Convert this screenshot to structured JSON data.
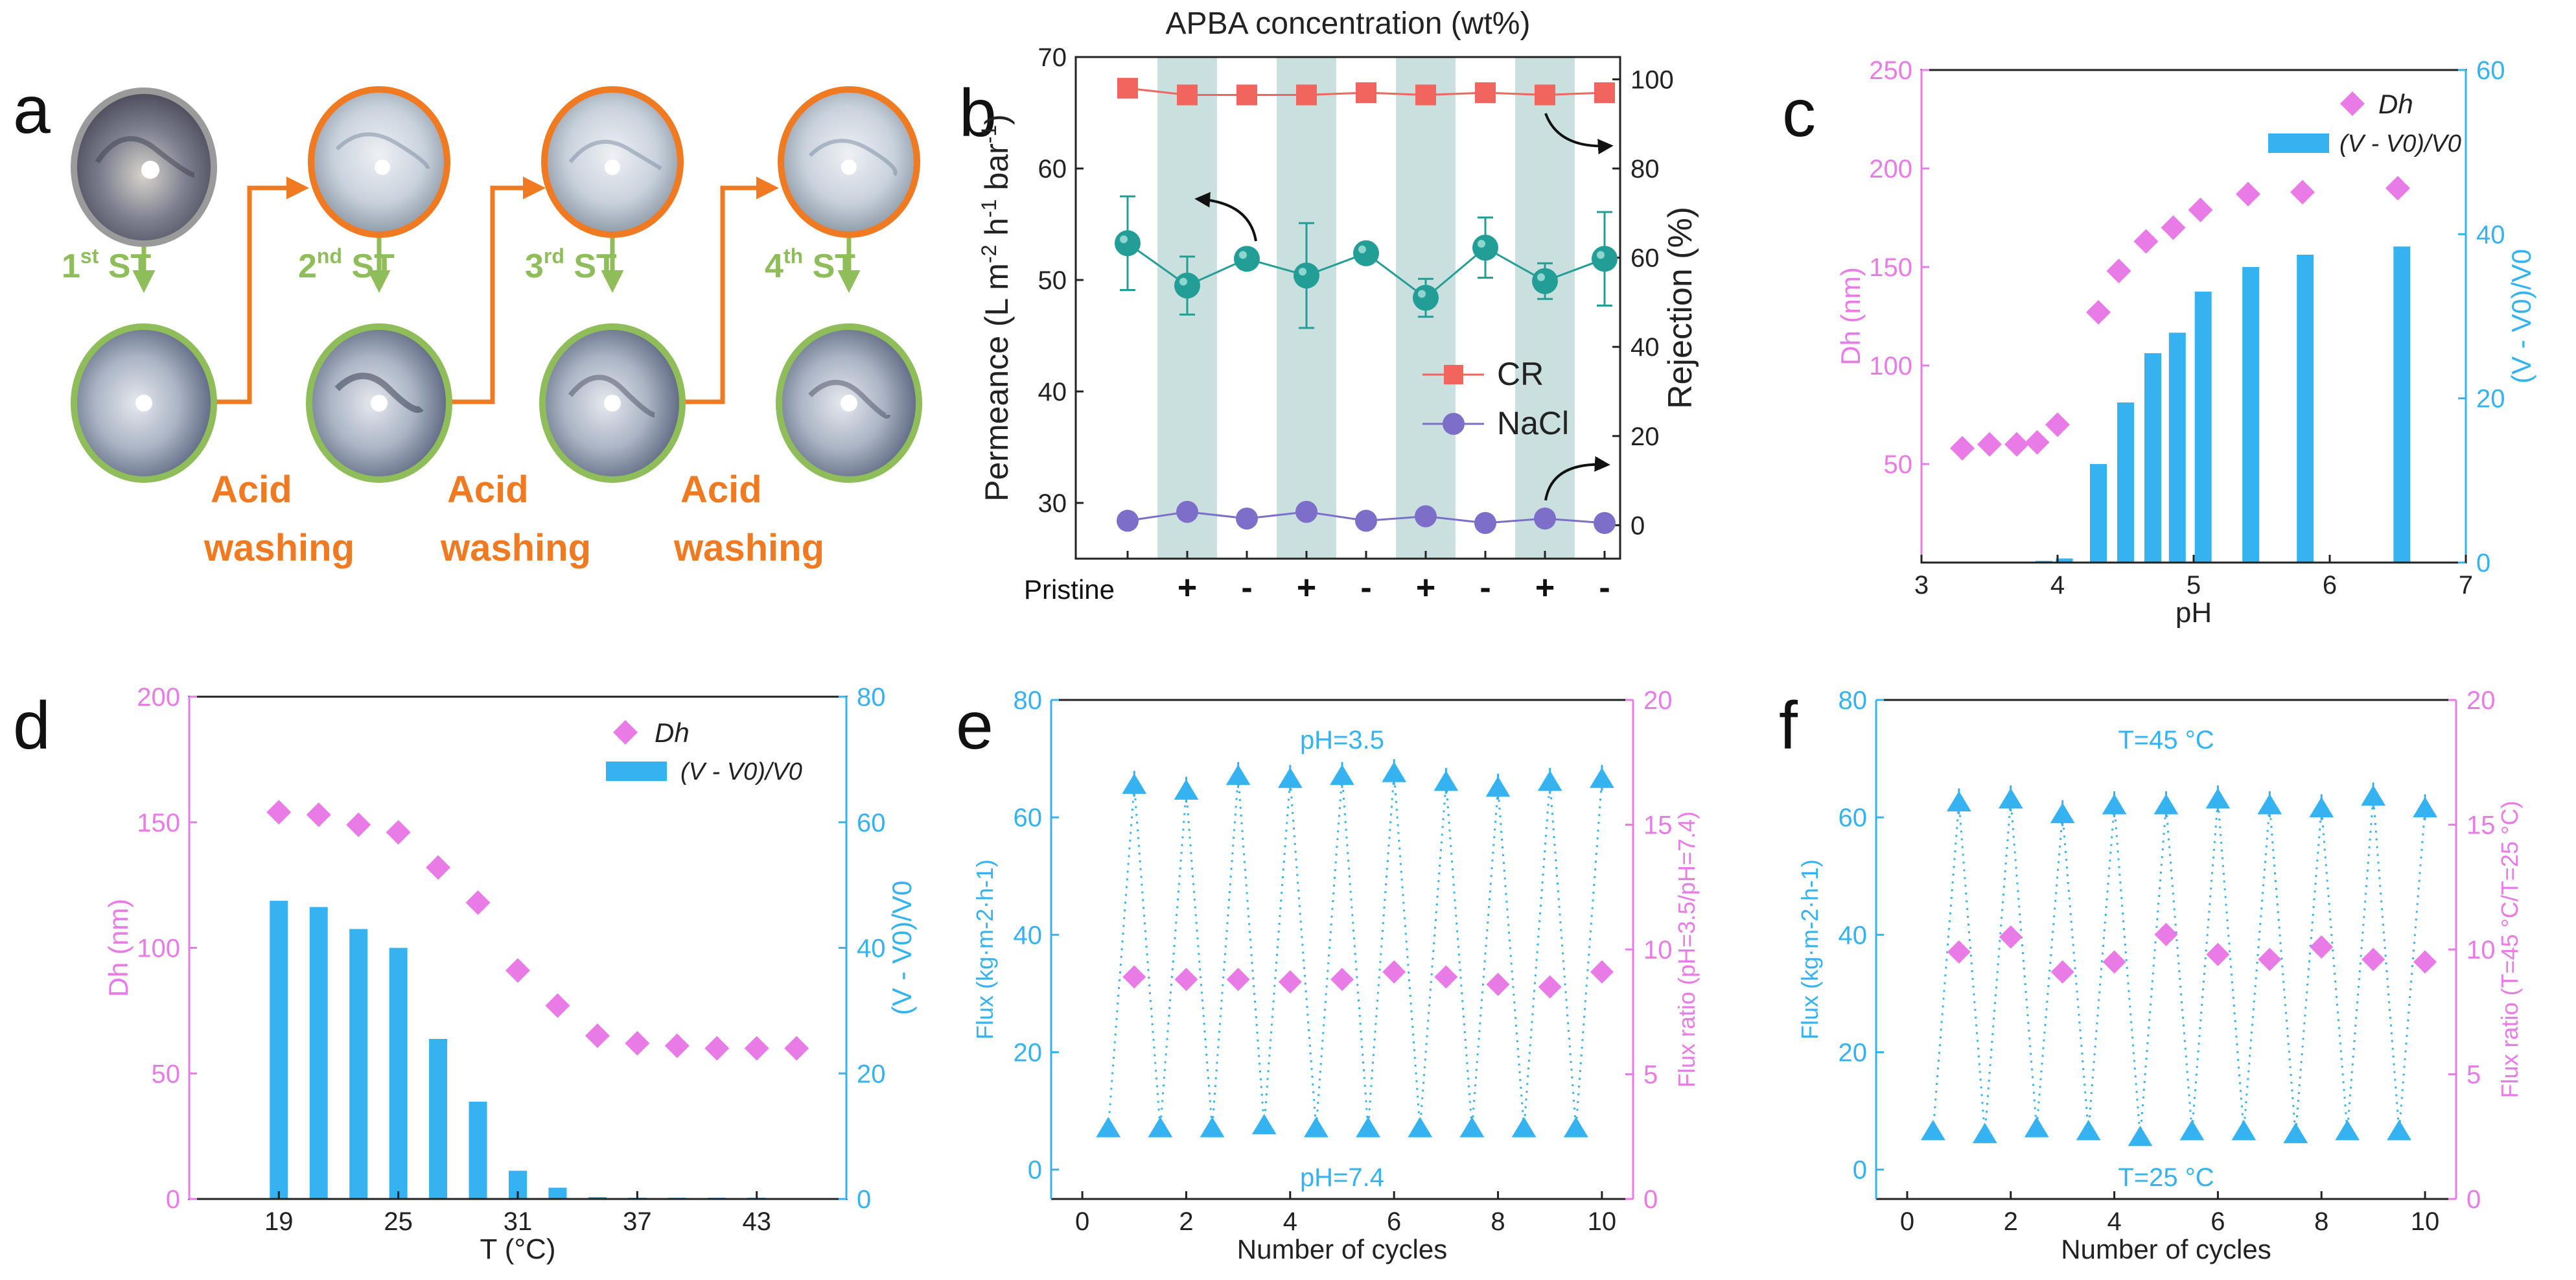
{
  "colors": {
    "magenta": "#e97be6",
    "cyan": "#35b2f0",
    "teal": "#239e96",
    "red": "#f2655f",
    "purple": "#7d6fc9",
    "orange": "#ef7a22",
    "green": "#8fbd5a",
    "shade": "#c9e0df"
  },
  "panel_a": {
    "label": "a",
    "steps": [
      {
        "num": "1",
        "sup": "st",
        "text": " ST"
      },
      {
        "num": "2",
        "sup": "nd",
        "text": " ST"
      },
      {
        "num": "3",
        "sup": "rd",
        "text": " ST"
      },
      {
        "num": "4",
        "sup": "th",
        "text": " ST"
      }
    ],
    "wash_line1": "Acid",
    "wash_line2": "washing"
  },
  "chart_data": [
    {
      "panel": "b",
      "type": "line",
      "title": "APBA concentration (wt%)",
      "categories": [
        "Pristine",
        "+",
        "-",
        "+",
        "-",
        "+",
        "-",
        "+",
        "-"
      ],
      "ylabel_left": "Permeance (L m-2 h-1 bar-1)",
      "ylabel_left_parts": [
        "Permeance (L m",
        "-2",
        " h",
        "-1",
        " bar",
        "-1",
        ")"
      ],
      "ylabel_right": "Rejection (%)",
      "ylim_left": [
        25,
        70
      ],
      "yticks_left": [
        30,
        40,
        50,
        60,
        70
      ],
      "ylim_right": [
        -7.5,
        105
      ],
      "yticks_right": [
        0,
        20,
        40,
        60,
        80,
        100
      ],
      "series": [
        {
          "name": "Permeance",
          "axis": "left",
          "values": [
            53.3,
            49.5,
            51.9,
            50.4,
            52.4,
            48.4,
            52.9,
            49.9,
            51.9
          ],
          "errors": [
            4.2,
            2.6,
            0.8,
            4.7,
            0.6,
            1.7,
            2.7,
            1.6,
            4.2
          ]
        },
        {
          "name": "CR",
          "axis": "right",
          "values": [
            98,
            96.5,
            96.5,
            96.5,
            97,
            96.5,
            97,
            96.5,
            97
          ]
        },
        {
          "name": "NaCl",
          "axis": "right",
          "values": [
            1,
            3,
            1.5,
            3,
            1,
            2,
            0.5,
            1.5,
            0.5
          ]
        }
      ],
      "legend": [
        "CR",
        "NaCl"
      ]
    },
    {
      "panel": "c",
      "type": "bar+scatter",
      "xlabel": "pH",
      "xlim": [
        3,
        7
      ],
      "xticks": [
        3,
        4,
        5,
        6,
        7
      ],
      "ylabel_left": "Dh (nm)",
      "ylim_left": [
        0,
        250
      ],
      "yticks_left": [
        50,
        100,
        150,
        200,
        250
      ],
      "ylabel_right": "(V - V0)/V0",
      "ylim_right": [
        0,
        60
      ],
      "yticks_right": [
        0,
        20,
        40,
        60
      ],
      "scatter_x": [
        3.3,
        3.5,
        3.7,
        3.85,
        4.0,
        4.3,
        4.45,
        4.65,
        4.85,
        5.05,
        5.4,
        5.8,
        6.5
      ],
      "scatter_y": [
        58,
        60,
        60,
        61,
        70,
        127,
        148,
        163,
        170,
        179,
        187,
        188,
        190
      ],
      "bar_x": [
        3.9,
        4.05,
        4.3,
        4.5,
        4.7,
        4.88,
        5.07,
        5.42,
        5.82,
        6.53
      ],
      "bar_y": [
        0.2,
        0.5,
        12,
        19.5,
        25.5,
        28,
        33,
        36,
        37.5,
        38.5
      ],
      "legend": [
        "Dh",
        "(V - V0)/V0"
      ]
    },
    {
      "panel": "d",
      "type": "bar+scatter",
      "xlabel": "T (°C)",
      "xticks": [
        19,
        25,
        31,
        37,
        43
      ],
      "xlim": [
        14.5,
        47.5
      ],
      "ylabel_left": "Dh (nm)",
      "ylim_left": [
        0,
        200
      ],
      "yticks_left": [
        0,
        50,
        100,
        150,
        200
      ],
      "ylabel_right": "(V - V0)/V0",
      "ylim_right": [
        0,
        80
      ],
      "yticks_right": [
        0,
        20,
        40,
        60,
        80
      ],
      "x": [
        19,
        21,
        23,
        25,
        27,
        29,
        31,
        33,
        35,
        37,
        39,
        41,
        43,
        45
      ],
      "scatter_y": [
        154,
        153,
        149,
        146,
        132,
        118,
        91,
        77,
        65,
        62,
        61,
        60,
        60,
        60
      ],
      "bar_y": [
        47.5,
        46.5,
        43,
        40,
        25.5,
        15.5,
        4.5,
        1.8,
        0.3,
        0.2,
        0.2,
        0.2,
        0.2,
        0
      ],
      "legend": [
        "Dh",
        "(V - V0)/V0"
      ]
    },
    {
      "panel": "e",
      "type": "scatter",
      "xlabel": "Number of cycles",
      "xlim": [
        -0.6,
        10.6
      ],
      "xticks": [
        0,
        2,
        4,
        6,
        8,
        10
      ],
      "ylabel_left": "Flux (kg·m-2·h-1)",
      "ylim_left": [
        -5,
        80
      ],
      "yticks_left": [
        0,
        20,
        40,
        60,
        80
      ],
      "ylabel_right": "Flux ratio (pH=3.5/pH=7.4)",
      "ylim_right": [
        0,
        20
      ],
      "yticks_right": [
        0,
        5,
        10,
        15,
        20
      ],
      "annotation_top": "pH=3.5",
      "annotation_bottom": "pH=7.4",
      "high_x": [
        1,
        2,
        3,
        4,
        5,
        6,
        7,
        8,
        9,
        10
      ],
      "high_y": [
        65.5,
        64.5,
        67,
        66.5,
        67,
        67.5,
        66,
        65,
        66,
        66.5
      ],
      "low_x": [
        0.5,
        1.5,
        2.5,
        3.5,
        4.5,
        5.5,
        6.5,
        7.5,
        8.5,
        9.5
      ],
      "low_y": [
        7,
        7,
        7,
        7.5,
        7,
        7,
        7,
        7,
        7,
        7
      ],
      "ratio_x": [
        1,
        2,
        3,
        4,
        5,
        6,
        7,
        8,
        9,
        10
      ],
      "ratio_y": [
        8.9,
        8.8,
        8.8,
        8.7,
        8.8,
        9.1,
        8.9,
        8.6,
        8.5,
        9.1
      ]
    },
    {
      "panel": "f",
      "type": "scatter",
      "xlabel": "Number of cycles",
      "xlim": [
        -0.6,
        10.6
      ],
      "xticks": [
        0,
        2,
        4,
        6,
        8,
        10
      ],
      "ylabel_left": "Flux (kg·m-2·h-1)",
      "ylim_left": [
        -5,
        80
      ],
      "yticks_left": [
        0,
        20,
        40,
        60,
        80
      ],
      "ylabel_right": "Flux ratio (T=45 °C/T=25 °C)",
      "ylim_right": [
        0,
        20
      ],
      "yticks_right": [
        0,
        5,
        10,
        15,
        20
      ],
      "annotation_top": "T=45 °C",
      "annotation_bottom": "T=25 °C",
      "high_x": [
        1,
        2,
        3,
        4,
        5,
        6,
        7,
        8,
        9,
        10
      ],
      "high_y": [
        62.5,
        63,
        60.5,
        62,
        62,
        63,
        62,
        61.5,
        63.5,
        61.5
      ],
      "low_x": [
        0.5,
        1.5,
        2.5,
        3.5,
        4.5,
        5.5,
        6.5,
        7.5,
        8.5,
        9.5
      ],
      "low_y": [
        6.5,
        6,
        7,
        6.5,
        5.5,
        6.5,
        6.5,
        6,
        6.5,
        6.5
      ],
      "ratio_x": [
        1,
        2,
        3,
        4,
        5,
        6,
        7,
        8,
        9,
        10
      ],
      "ratio_y": [
        9.9,
        10.5,
        9.1,
        9.5,
        10.6,
        9.8,
        9.6,
        10.1,
        9.6,
        9.5
      ]
    }
  ]
}
